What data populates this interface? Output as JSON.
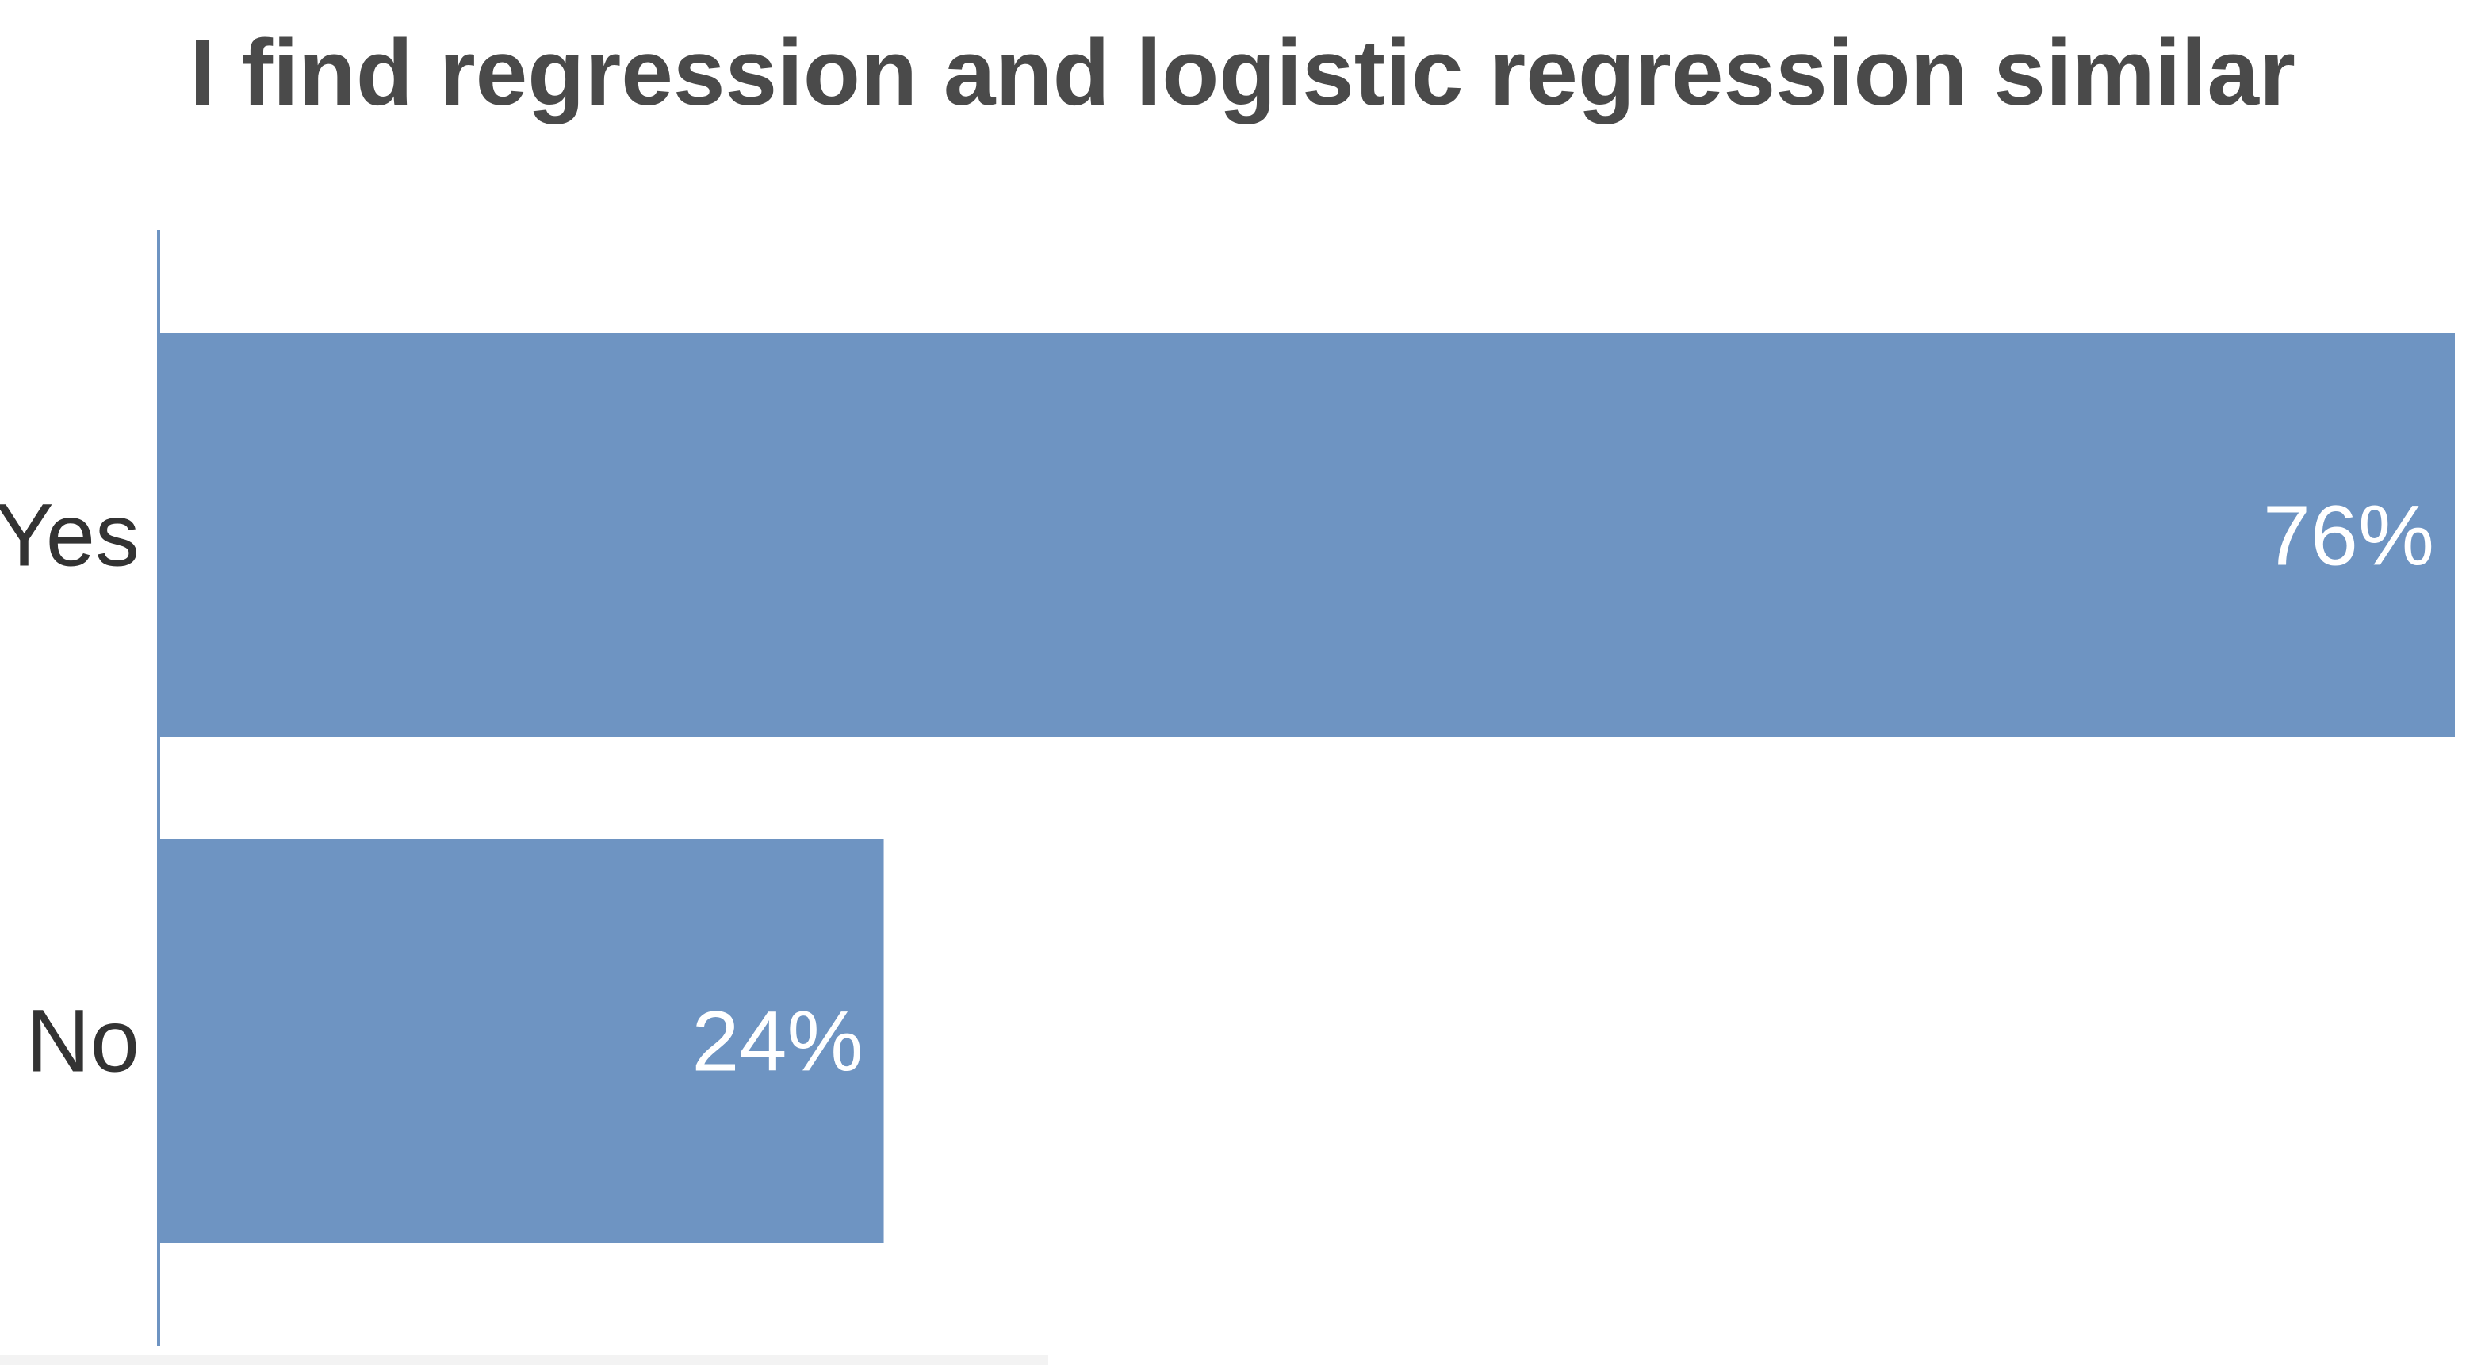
{
  "chart_data": {
    "type": "bar",
    "orientation": "horizontal",
    "title": "I find regression and logistic regression similar",
    "categories": [
      "Yes",
      "No"
    ],
    "values": [
      76,
      24
    ],
    "value_labels": [
      "76%",
      "24%"
    ],
    "xlim": [
      0,
      76
    ],
    "grid": false,
    "legend": "none",
    "colors": {
      "bar": "#6e94c2",
      "axis": "#6e94c2",
      "title": "#4a4a4a",
      "category_text": "#333333",
      "value_text": "#ffffff"
    }
  }
}
